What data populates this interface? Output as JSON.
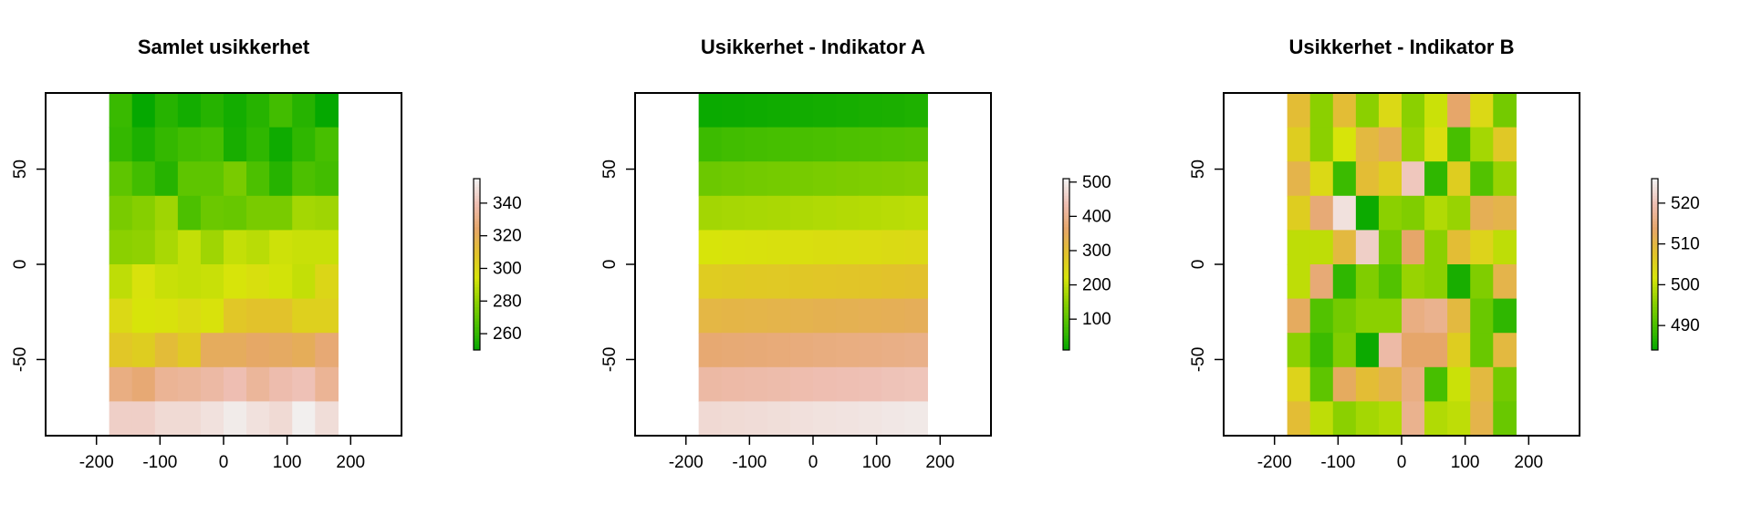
{
  "chart_data": [
    {
      "type": "heatmap",
      "title": "Samlet usikkerhet",
      "xlabel": "",
      "ylabel": "",
      "xlim": [
        -280,
        280
      ],
      "ylim": [
        -90,
        90
      ],
      "x_ticks": [
        -200,
        -100,
        0,
        100,
        200
      ],
      "y_ticks": [
        -50,
        0,
        50
      ],
      "cell_x_range": [
        -180,
        180
      ],
      "cell_y_range": [
        -90,
        90
      ],
      "value_range": [
        250,
        355
      ],
      "colorbar_ticks": [
        260,
        280,
        300,
        320,
        340
      ],
      "rows_top_to_bottom": [
        [
          262,
          251,
          258,
          254,
          258,
          254,
          258,
          264,
          258,
          251
        ],
        [
          261,
          256,
          261,
          264,
          265,
          255,
          260,
          253,
          260,
          265
        ],
        [
          270,
          264,
          258,
          270,
          270,
          276,
          266,
          258,
          266,
          264
        ],
        [
          276,
          279,
          284,
          266,
          273,
          272,
          276,
          276,
          285,
          284
        ],
        [
          280,
          281,
          286,
          291,
          284,
          291,
          289,
          293,
          292,
          292
        ],
        [
          290,
          296,
          292,
          291,
          292,
          295,
          297,
          294,
          291,
          301
        ],
        [
          300,
          295,
          296,
          299,
          296,
          308,
          310,
          310,
          304,
          304
        ],
        [
          308,
          305,
          313,
          307,
          322,
          322,
          324,
          323,
          321,
          327
        ],
        [
          330,
          327,
          334,
          335,
          337,
          340,
          335,
          339,
          341,
          334
        ],
        [
          345,
          345,
          348,
          348,
          350,
          353,
          350,
          348,
          354,
          349
        ]
      ]
    },
    {
      "type": "heatmap",
      "title": "Usikkerhet - Indikator A",
      "xlabel": "",
      "ylabel": "",
      "xlim": [
        -280,
        280
      ],
      "ylim": [
        -90,
        90
      ],
      "x_ticks": [
        -200,
        -100,
        0,
        100,
        200
      ],
      "y_ticks": [
        -50,
        0,
        50
      ],
      "cell_x_range": [
        -180,
        180
      ],
      "cell_y_range": [
        -90,
        90
      ],
      "value_range": [
        10,
        510
      ],
      "colorbar_ticks": [
        100,
        200,
        300,
        400,
        500
      ],
      "rows_top_to_bottom": [
        [
          20,
          22,
          24,
          26,
          28,
          30,
          32,
          35,
          37,
          40
        ],
        [
          70,
          75,
          78,
          80,
          82,
          85,
          88,
          90,
          92,
          95
        ],
        [
          120,
          125,
          128,
          130,
          132,
          135,
          138,
          140,
          142,
          145
        ],
        [
          175,
          178,
          180,
          182,
          185,
          188,
          190,
          192,
          195,
          198
        ],
        [
          225,
          228,
          230,
          232,
          235,
          238,
          240,
          242,
          245,
          248
        ],
        [
          275,
          278,
          280,
          282,
          285,
          288,
          290,
          292,
          295,
          298
        ],
        [
          325,
          328,
          330,
          332,
          335,
          338,
          340,
          342,
          345,
          348
        ],
        [
          375,
          378,
          380,
          382,
          385,
          388,
          390,
          392,
          395,
          398
        ],
        [
          425,
          428,
          430,
          432,
          435,
          438,
          440,
          442,
          445,
          448
        ],
        [
          475,
          478,
          480,
          482,
          485,
          488,
          490,
          492,
          495,
          498
        ]
      ]
    },
    {
      "type": "heatmap",
      "title": "Usikkerhet - Indikator B",
      "xlabel": "",
      "ylabel": "",
      "xlim": [
        -280,
        280
      ],
      "ylim": [
        -90,
        90
      ],
      "x_ticks": [
        -200,
        -100,
        0,
        100,
        200
      ],
      "y_ticks": [
        -50,
        0,
        50
      ],
      "cell_x_range": [
        -180,
        180
      ],
      "cell_y_range": [
        -90,
        90
      ],
      "value_range": [
        484,
        526
      ],
      "colorbar_ticks": [
        490,
        500,
        510,
        520
      ],
      "rows_top_to_bottom": [
        [
          509,
          496,
          509,
          496,
          504,
          496,
          501,
          514,
          504,
          494
        ],
        [
          506,
          496,
          502,
          510,
          512,
          497,
          503,
          490,
          498,
          507
        ],
        [
          511,
          504,
          489,
          509,
          506,
          521,
          488,
          506,
          491,
          497
        ],
        [
          506,
          515,
          524,
          485,
          496,
          495,
          499,
          497,
          512,
          511
        ],
        [
          500,
          500,
          510,
          522,
          494,
          514,
          496,
          509,
          505,
          500
        ],
        [
          500,
          515,
          488,
          495,
          491,
          497,
          496,
          486,
          495,
          511
        ],
        [
          513,
          491,
          494,
          496,
          496,
          516,
          517,
          510,
          493,
          488
        ],
        [
          496,
          489,
          495,
          485,
          519,
          514,
          514,
          506,
          493,
          510
        ],
        [
          505,
          492,
          513,
          509,
          511,
          516,
          490,
          501,
          510,
          494
        ],
        [
          509,
          500,
          496,
          498,
          499,
          517,
          499,
          500,
          511,
          493
        ]
      ]
    }
  ],
  "colors": {
    "scale": [
      "#F2F2F2",
      "#EEBEB2",
      "#E6A66A",
      "#E2C22B",
      "#D7E40A",
      "#8BD000",
      "#47BF00",
      "#00A600"
    ],
    "axis": "#000000",
    "background": "#FFFFFF"
  }
}
